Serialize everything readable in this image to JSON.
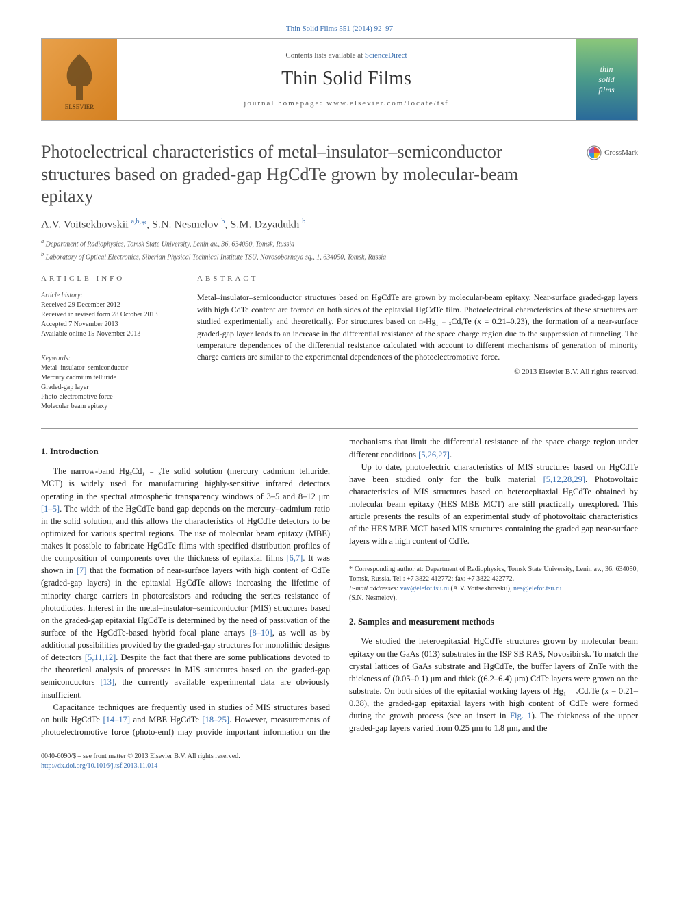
{
  "journal_ref": {
    "text": "Thin Solid Films 551 (2014) 92–97",
    "link_color": "#3a6fb0"
  },
  "header": {
    "contents_prefix": "Contents lists available at ",
    "contents_link": "ScienceDirect",
    "journal_name": "Thin Solid Films",
    "homepage_label": "journal homepage: www.elsevier.com/locate/tsf",
    "publisher_label": "ELSEVIER",
    "cover_title_1": "thin",
    "cover_title_2": "solid",
    "cover_title_3": "films"
  },
  "crossmark_label": "CrossMark",
  "title": "Photoelectrical characteristics of metal–insulator–semiconductor structures based on graded-gap HgCdTe grown by molecular-beam epitaxy",
  "authors_html": "A.V. Voitsekhovskii <sup><a href=\"#\">a,b,</a></sup><a href=\"#\">*</a>, S.N. Nesmelov <sup><a href=\"#\">b</a></sup>, S.M. Dzyadukh <sup><a href=\"#\">b</a></sup>",
  "affiliations": [
    {
      "marker": "a",
      "text": "Department of Radiophysics, Tomsk State University, Lenin av., 36, 634050, Tomsk, Russia"
    },
    {
      "marker": "b",
      "text": "Laboratory of Optical Electronics, Siberian Physical Technical Institute TSU, Novosobornaya sq., 1, 634050, Tomsk, Russia"
    }
  ],
  "article_info": {
    "heading": "ARTICLE INFO",
    "history_label": "Article history:",
    "history": [
      "Received 29 December 2012",
      "Received in revised form 28 October 2013",
      "Accepted 7 November 2013",
      "Available online 15 November 2013"
    ],
    "keywords_label": "Keywords:",
    "keywords": [
      "Metal–insulator–semiconductor",
      "Mercury cadmium telluride",
      "Graded-gap layer",
      "Photo-electromotive force",
      "Molecular beam epitaxy"
    ]
  },
  "abstract": {
    "heading": "ABSTRACT",
    "text": "Metal–insulator–semiconductor structures based on HgCdTe are grown by molecular-beam epitaxy. Near-surface graded-gap layers with high CdTe content are formed on both sides of the epitaxial HgCdTe film. Photoelectrical characteristics of these structures are studied experimentally and theoretically. For structures based on n-Hg₁ ₋ ₓCdₓTe (x = 0.21–0.23), the formation of a near-surface graded-gap layer leads to an increase in the differential resistance of the space charge region due to the suppression of tunneling. The temperature dependences of the differential resistance calculated with account to different mechanisms of generation of minority charge carriers are similar to the experimental dependences of the photoelectromotive force.",
    "copyright": "© 2013 Elsevier B.V. All rights reserved."
  },
  "sections": {
    "intro_head": "1. Introduction",
    "intro_paragraphs": [
      "The narrow-band HgₓCd₁ ₋ ₓTe solid solution (mercury cadmium telluride, MCT) is widely used for manufacturing highly-sensitive infrared detectors operating in the spectral atmospheric transparency windows of 3–5 and 8–12 μm <a href=\"#\">[1–5]</a>. The width of the HgCdTe band gap depends on the mercury–cadmium ratio in the solid solution, and this allows the characteristics of HgCdTe detectors to be optimized for various spectral regions. The use of molecular beam epitaxy (MBE) makes it possible to fabricate HgCdTe films with specified distribution profiles of the composition of components over the thickness of epitaxial films <a href=\"#\">[6,7]</a>. It was shown in <a href=\"#\">[7]</a> that the formation of near-surface layers with high content of CdTe (graded-gap layers) in the epitaxial HgCdTe allows increasing the lifetime of minority charge carriers in photoresistors and reducing the series resistance of photodiodes. Interest in the metal–insulator–semiconductor (MIS) structures based on the graded-gap epitaxial HgCdTe is determined by the need of passivation of the surface of the HgCdTe-based hybrid focal plane arrays <a href=\"#\">[8–10]</a>, as well as by additional possibilities provided by the graded-gap structures for monolithic designs of detectors <a href=\"#\">[5,11,12]</a>. Despite the fact that there are some publications devoted to the theoretical analysis of processes in MIS structures based on the graded-gap semiconductors <a href=\"#\">[13]</a>, the currently available experimental data are obviously insufficient.",
      "Capacitance techniques are frequently used in studies of MIS structures based on bulk HgCdTe <a href=\"#\">[14–17]</a> and MBE HgCdTe <a href=\"#\">[18–25]</a>. However, measurements of photoelectromotive force (photo-emf) may provide important information on the mechanisms that limit the differential resistance of the space charge region under different conditions <a href=\"#\">[5,26,27]</a>.",
      "Up to date, photoelectric characteristics of MIS structures based on HgCdTe have been studied only for the bulk material <a href=\"#\">[5,12,28,29]</a>. Photovoltaic characteristics of MIS structures based on heteroepitaxial HgCdTe obtained by molecular beam epitaxy (HES MBE MCT) are still practically unexplored. This article presents the results of an experimental study of photovoltaic characteristics of the HES MBE MCT based MIS structures containing the graded gap near-surface layers with a high content of CdTe."
    ],
    "samples_head": "2. Samples and measurement methods",
    "samples_paragraphs": [
      "We studied the heteroepitaxial HgCdTe structures grown by molecular beam epitaxy on the GaAs (013) substrates in the ISP SB RAS, Novosibirsk. To match the crystal lattices of GaAs substrate and HgCdTe, the buffer layers of ZnTe with the thickness of (0.05–0.1) μm and thick ((6.2–6.4) μm) CdTe layers were grown on the substrate. On both sides of the epitaxial working layers of Hg₁ ₋ ₓCdₓTe (x = 0.21–0.38), the graded-gap epitaxial layers with high content of CdTe were formed during the growth process (see an insert in <a href=\"#\">Fig. 1</a>). The thickness of the upper graded-gap layers varied from 0.25 μm to 1.8 μm, and the"
    ]
  },
  "footnotes": {
    "corresponding": "* Corresponding author at: Department of Radiophysics, Tomsk State University, Lenin av., 36, 634050, Tomsk, Russia. Tel.: +7 3822 412772; fax: +7 3822 422772.",
    "email_label": "E-mail addresses: ",
    "email1": "vav@elefot.tsu.ru",
    "email1_name": " (A.V. Voitsekhovskii), ",
    "email2": "nes@elefot.tsu.ru",
    "email2_name": "(S.N. Nesmelov)."
  },
  "bottom": {
    "issn_line": "0040-6090/$ – see front matter © 2013 Elsevier B.V. All rights reserved.",
    "doi": "http://dx.doi.org/10.1016/j.tsf.2013.11.014"
  },
  "colors": {
    "link": "#3a6fb0",
    "text": "#222222",
    "rule": "#999999",
    "elsevier_bg1": "#e8a04a",
    "elsevier_bg2": "#d48020"
  }
}
